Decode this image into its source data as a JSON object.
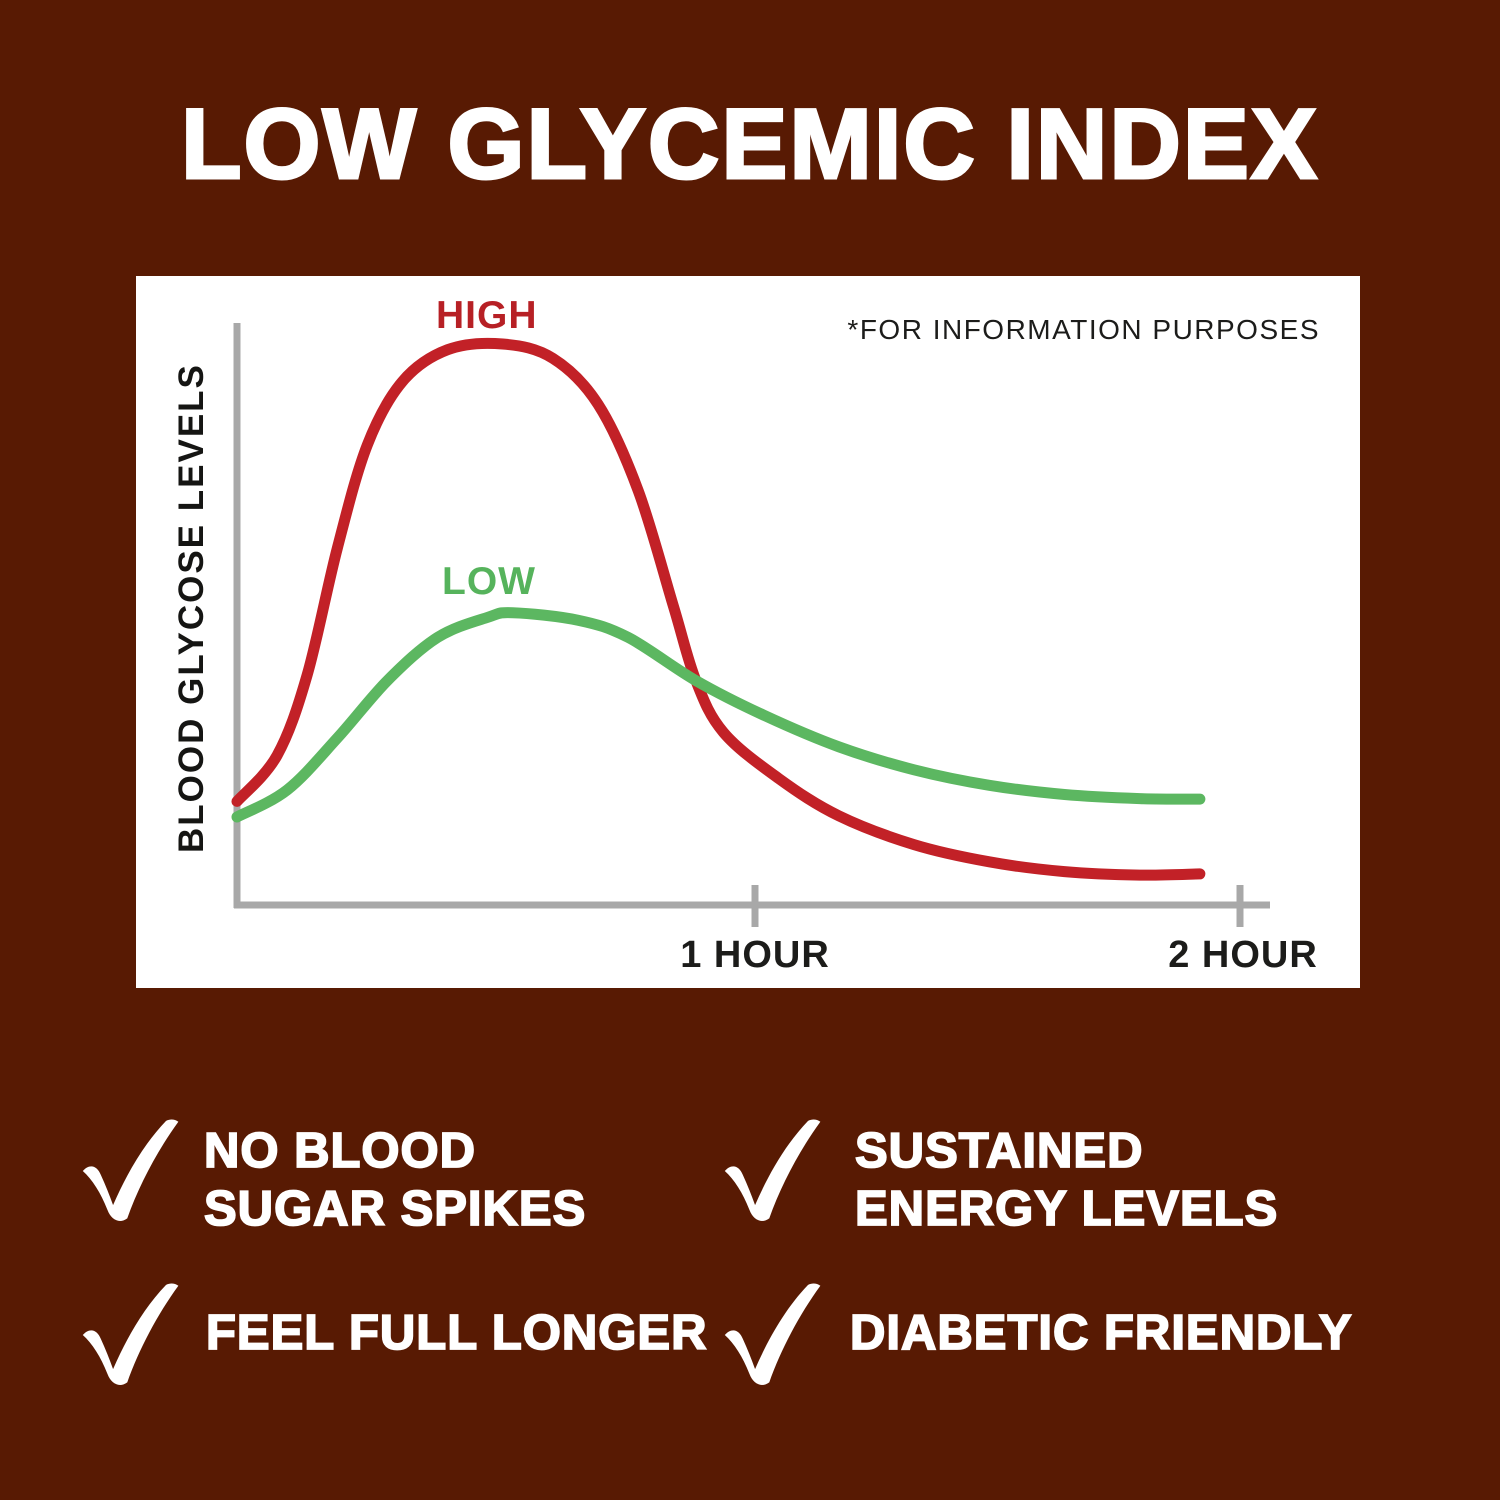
{
  "title": "LOW GLYCEMIC INDEX",
  "colors": {
    "background": "#581a03",
    "panel": "#ffffff",
    "axis": "#a8a8a8",
    "text_dark": "#1c1c1a",
    "white": "#ffffff"
  },
  "icons": {
    "benefit_bullet": "check-icon"
  },
  "chart": {
    "note": "*FOR INFORMATION PURPOSES",
    "y_axis_label": "BLOOD GLYCOSE LEVELS",
    "x_ticks": [
      "1 HOUR",
      "2 HOUR"
    ]
  },
  "chart_data": {
    "type": "line",
    "title": "LOW GLYCEMIC INDEX",
    "xlabel": "",
    "ylabel": "BLOOD GLYCOSE LEVELS",
    "x_unit": "hours",
    "x_tick_hours": [
      1,
      2
    ],
    "x_tick_labels": [
      "1 HOUR",
      "2 HOUR"
    ],
    "xlim": [
      0,
      2.05
    ],
    "ylim": [
      0,
      100
    ],
    "y_unit": "relative blood glucose level (qualitative, unlabeled axis)",
    "grid": false,
    "legend_position": "inline-curve-labels",
    "annotations": [
      "*FOR INFORMATION PURPOSES"
    ],
    "series": [
      {
        "name": "HIGH",
        "color": "#c22127",
        "label_color": "#b72025",
        "points": [
          [
            0,
            18
          ],
          [
            0.08,
            26
          ],
          [
            0.14,
            40
          ],
          [
            0.2,
            62
          ],
          [
            0.26,
            80
          ],
          [
            0.33,
            91
          ],
          [
            0.42,
            96.5
          ],
          [
            0.53,
            97.5
          ],
          [
            0.63,
            95
          ],
          [
            0.72,
            87
          ],
          [
            0.8,
            72
          ],
          [
            0.87,
            52
          ],
          [
            0.915,
            39
          ],
          [
            0.97,
            30
          ],
          [
            1.08,
            22
          ],
          [
            1.2,
            15.5
          ],
          [
            1.35,
            10.5
          ],
          [
            1.5,
            7.5
          ],
          [
            1.65,
            5.8
          ],
          [
            1.8,
            5.2
          ],
          [
            1.92,
            5.4
          ]
        ]
      },
      {
        "name": "LOW",
        "color": "#5cb761",
        "label_color": "#56b35c",
        "points": [
          [
            0,
            15.3
          ],
          [
            0.1,
            20
          ],
          [
            0.2,
            29
          ],
          [
            0.3,
            39
          ],
          [
            0.4,
            46.5
          ],
          [
            0.5,
            50
          ],
          [
            0.55,
            50.8
          ],
          [
            0.68,
            49.5
          ],
          [
            0.78,
            46.5
          ],
          [
            0.915,
            39
          ],
          [
            1.05,
            33
          ],
          [
            1.2,
            27.5
          ],
          [
            1.35,
            23.5
          ],
          [
            1.5,
            20.8
          ],
          [
            1.65,
            19.2
          ],
          [
            1.8,
            18.5
          ],
          [
            1.92,
            18.4
          ]
        ]
      }
    ]
  },
  "benefits": [
    {
      "lines": [
        "NO BLOOD",
        "SUGAR SPIKES"
      ]
    },
    {
      "lines": [
        "SUSTAINED",
        "ENERGY LEVELS"
      ]
    },
    {
      "lines": [
        "FEEL FULL LONGER"
      ]
    },
    {
      "lines": [
        "DIABETIC FRIENDLY"
      ]
    }
  ]
}
